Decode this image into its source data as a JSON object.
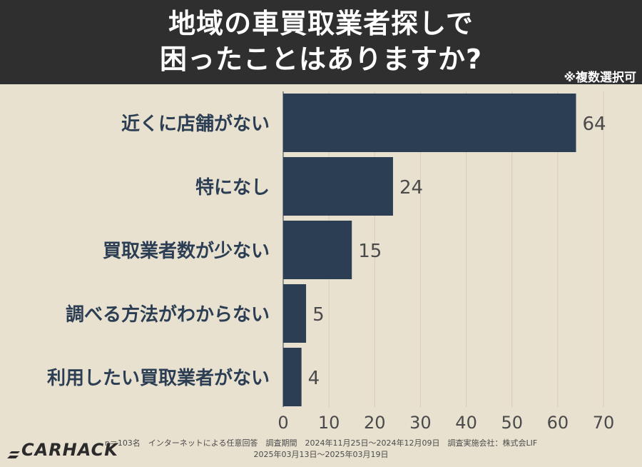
{
  "header": {
    "title_line1": "地域の車買取業者探しで",
    "title_line2": "困ったことはありますか?",
    "note": "※複数選択可"
  },
  "chart_data": {
    "type": "bar",
    "orientation": "horizontal",
    "categories": [
      "近くに店舗がない",
      "特になし",
      "買取業者数が少ない",
      "調べる方法がわからない",
      "利用したい買取業者がない"
    ],
    "values": [
      64,
      24,
      15,
      5,
      4
    ],
    "xlim": [
      0,
      70
    ],
    "xticks": [
      0,
      10,
      20,
      30,
      40,
      50,
      60,
      70
    ],
    "grid": true,
    "bar_color": "#2c3e54",
    "label_color": "#2c3e54"
  },
  "footer": {
    "line1": "n＝103名　インターネットによる任意回答　調査期間　2024年11月25日〜2024年12月09日　調査実施会社：株式会LIF",
    "line2": "2025年03月13日〜2025年03月19日",
    "logo": "CARHACK"
  }
}
